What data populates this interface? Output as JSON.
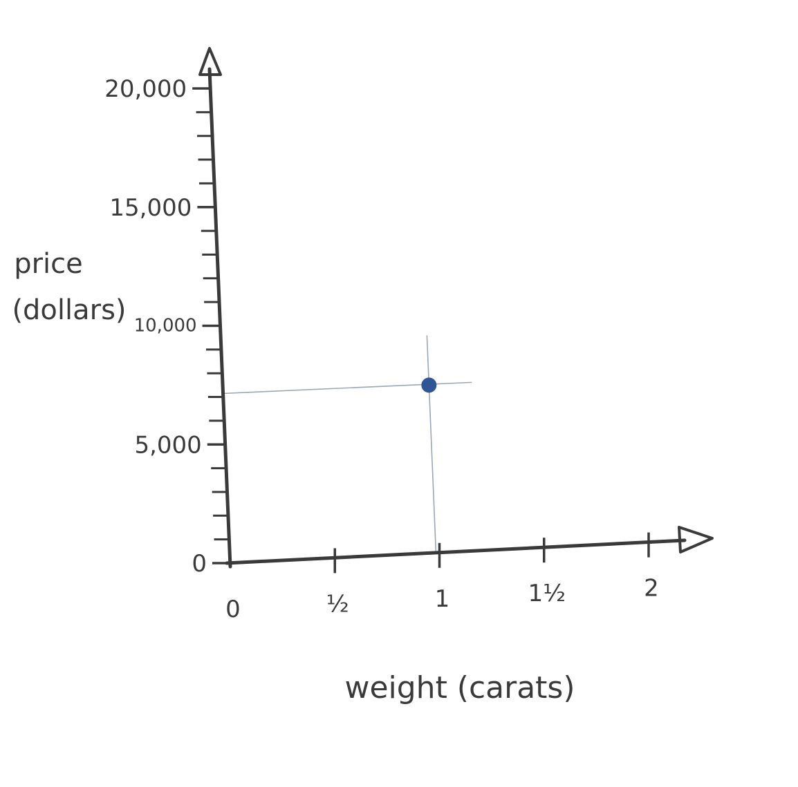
{
  "chart_data": {
    "type": "scatter",
    "title": "",
    "xlabel": "weight  (carats)",
    "ylabel_lines": [
      "price",
      "(dollars)"
    ],
    "xlim": [
      0,
      2.3
    ],
    "ylim": [
      0,
      21000
    ],
    "x_ticks": [
      {
        "value": 0,
        "label": "0"
      },
      {
        "value": 0.5,
        "label": "½"
      },
      {
        "value": 1,
        "label": "1"
      },
      {
        "value": 1.5,
        "label": "1½"
      },
      {
        "value": 2,
        "label": "2"
      }
    ],
    "y_ticks": [
      {
        "value": 0,
        "label": "0"
      },
      {
        "value": 5000,
        "label": "5,000"
      },
      {
        "value": 10000,
        "label": "10,000"
      },
      {
        "value": 15000,
        "label": "15,000"
      },
      {
        "value": 20000,
        "label": "20,000"
      }
    ],
    "y_minor_step": 1000,
    "points": [
      {
        "x": 0.95,
        "y": 7500
      }
    ],
    "guide_lines": true,
    "grid": false,
    "colors": {
      "axis": "#3a3a3a",
      "point": "#2f5597",
      "guide": "#9aa7b4"
    }
  }
}
